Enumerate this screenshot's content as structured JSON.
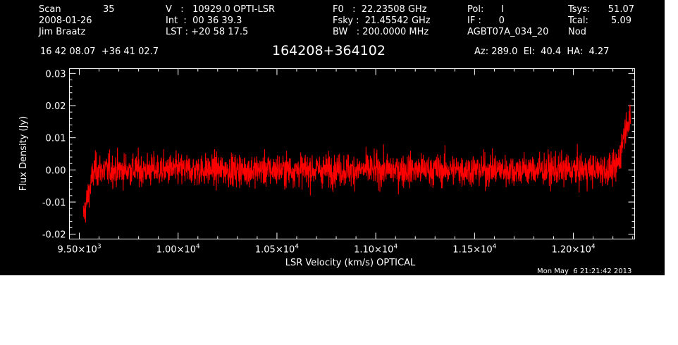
{
  "header": {
    "col1": [
      "Scan",
      "2008-01-26",
      "Jim Braatz"
    ],
    "scan_value": "35",
    "col2": [
      "V   :   10929.0 OPTI-LSR",
      "Int  :  00 36 39.3",
      "LST : +20 58 17.5"
    ],
    "col3": [
      "F0   :  22.23508 GHz",
      "Fsky :  21.45542 GHz",
      "BW   : 200.0000 MHz"
    ],
    "col4": [
      "Pol:      I",
      "IF :      0",
      "AGBT07A_034_20"
    ],
    "col5": [
      "Tsys:",
      "Tcal:",
      "Nod"
    ],
    "col6": [
      "51.07",
      "5.09"
    ],
    "coords": "16 42 08.07  +36 41 02.7",
    "source": "164208+364102",
    "azel": "Az: 289.0  El:  40.4  HA:  4.27",
    "timestamp": "Mon May  6 21:21:42 2013"
  },
  "chart_data": {
    "type": "line",
    "xlabel": "LSR Velocity (km/s) OPTICAL",
    "ylabel": "Flux Density (Jy)",
    "xlim": [
      9450,
      12310
    ],
    "ylim": [
      -0.0215,
      0.0315
    ],
    "x_tick_values": [
      9500,
      10000,
      10500,
      11000,
      11500,
      12000
    ],
    "x_tick_labels": [
      {
        "mant": "9.50×10",
        "exp": "3"
      },
      {
        "mant": "1.00×10",
        "exp": "4"
      },
      {
        "mant": "1.05×10",
        "exp": "4"
      },
      {
        "mant": "1.10×10",
        "exp": "4"
      },
      {
        "mant": "1.15×10",
        "exp": "4"
      },
      {
        "mant": "1.20×10",
        "exp": "4"
      }
    ],
    "y_tick_values": [
      -0.02,
      -0.01,
      0.0,
      0.01,
      0.02,
      0.03
    ],
    "y_tick_labels": [
      "-0.02",
      "-0.01",
      "0.00",
      "0.01",
      "0.02",
      "0.03"
    ],
    "series": [
      {
        "color": "#ff0000",
        "x_range": [
          9520,
          12290
        ],
        "noise_rms": 0.0035,
        "profile": [
          {
            "x": 9520,
            "y": -0.0145
          },
          {
            "x": 9545,
            "y": -0.008
          },
          {
            "x": 9575,
            "y": 0.0
          },
          {
            "x": 12210,
            "y": 0.0
          },
          {
            "x": 12230,
            "y": 0.003
          },
          {
            "x": 12255,
            "y": 0.011
          },
          {
            "x": 12275,
            "y": 0.016
          },
          {
            "x": 12290,
            "y": 0.014
          }
        ]
      }
    ],
    "grid": false
  },
  "colors": {
    "background": "#000000",
    "foreground": "#ffffff",
    "trace": "#ff0000"
  }
}
